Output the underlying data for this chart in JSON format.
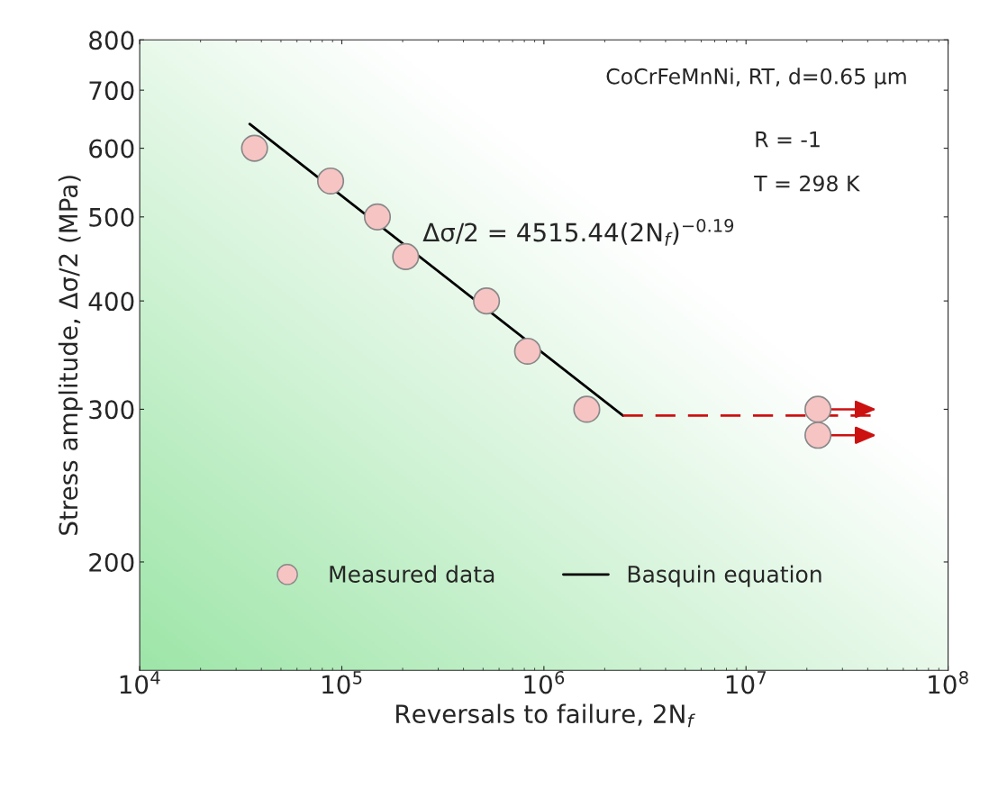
{
  "chart_data": {
    "type": "scatter",
    "xlabel": "Reversals to failure, 2N$_{f}$",
    "ylabel": "Stress amplitude, Δσ/2 (MPa)",
    "log": "xy",
    "xlim": [
      10000,
      100000000
    ],
    "ylim": [
      150,
      800
    ],
    "xticks": [
      {
        "value": 10000,
        "label": "10$^{4}$"
      },
      {
        "value": 100000,
        "label": "10$^{5}$"
      },
      {
        "value": 1000000,
        "label": "10$^{6}$"
      },
      {
        "value": 10000000,
        "label": "10$^{7}$"
      },
      {
        "value": 100000000,
        "label": "10$^{8}$"
      }
    ],
    "yticks": [
      200,
      300,
      400,
      500,
      600,
      700,
      800
    ],
    "grid": false,
    "legend": "bottom",
    "series": [
      {
        "name": "Measured data",
        "marker": "circle",
        "color": "#f7c4c4",
        "x": [
          37000,
          88000,
          150000,
          207000,
          520000,
          830000,
          1630000,
          22700000,
          22700000
        ],
        "values": [
          600,
          550,
          500,
          450,
          400,
          350,
          300,
          300,
          280
        ]
      },
      {
        "name": "Basquin equation",
        "type": "line",
        "line_style": "solid",
        "color": "#000000",
        "x": [
          35000,
          2460000
        ],
        "values": [
          640,
          295
        ]
      },
      {
        "type": "line",
        "line_style": "dashed",
        "color": "#cc1111",
        "x": [
          2460000,
          42000000
        ],
        "values": [
          295,
          295
        ]
      }
    ],
    "annotations": [
      "CoCrFeMnNi, RT, d=0.65 μm",
      "R = -1",
      "T = 298 K",
      "Δσ/2 = 4515.44(2N$_{f}$)$^{−0.19}$"
    ]
  }
}
